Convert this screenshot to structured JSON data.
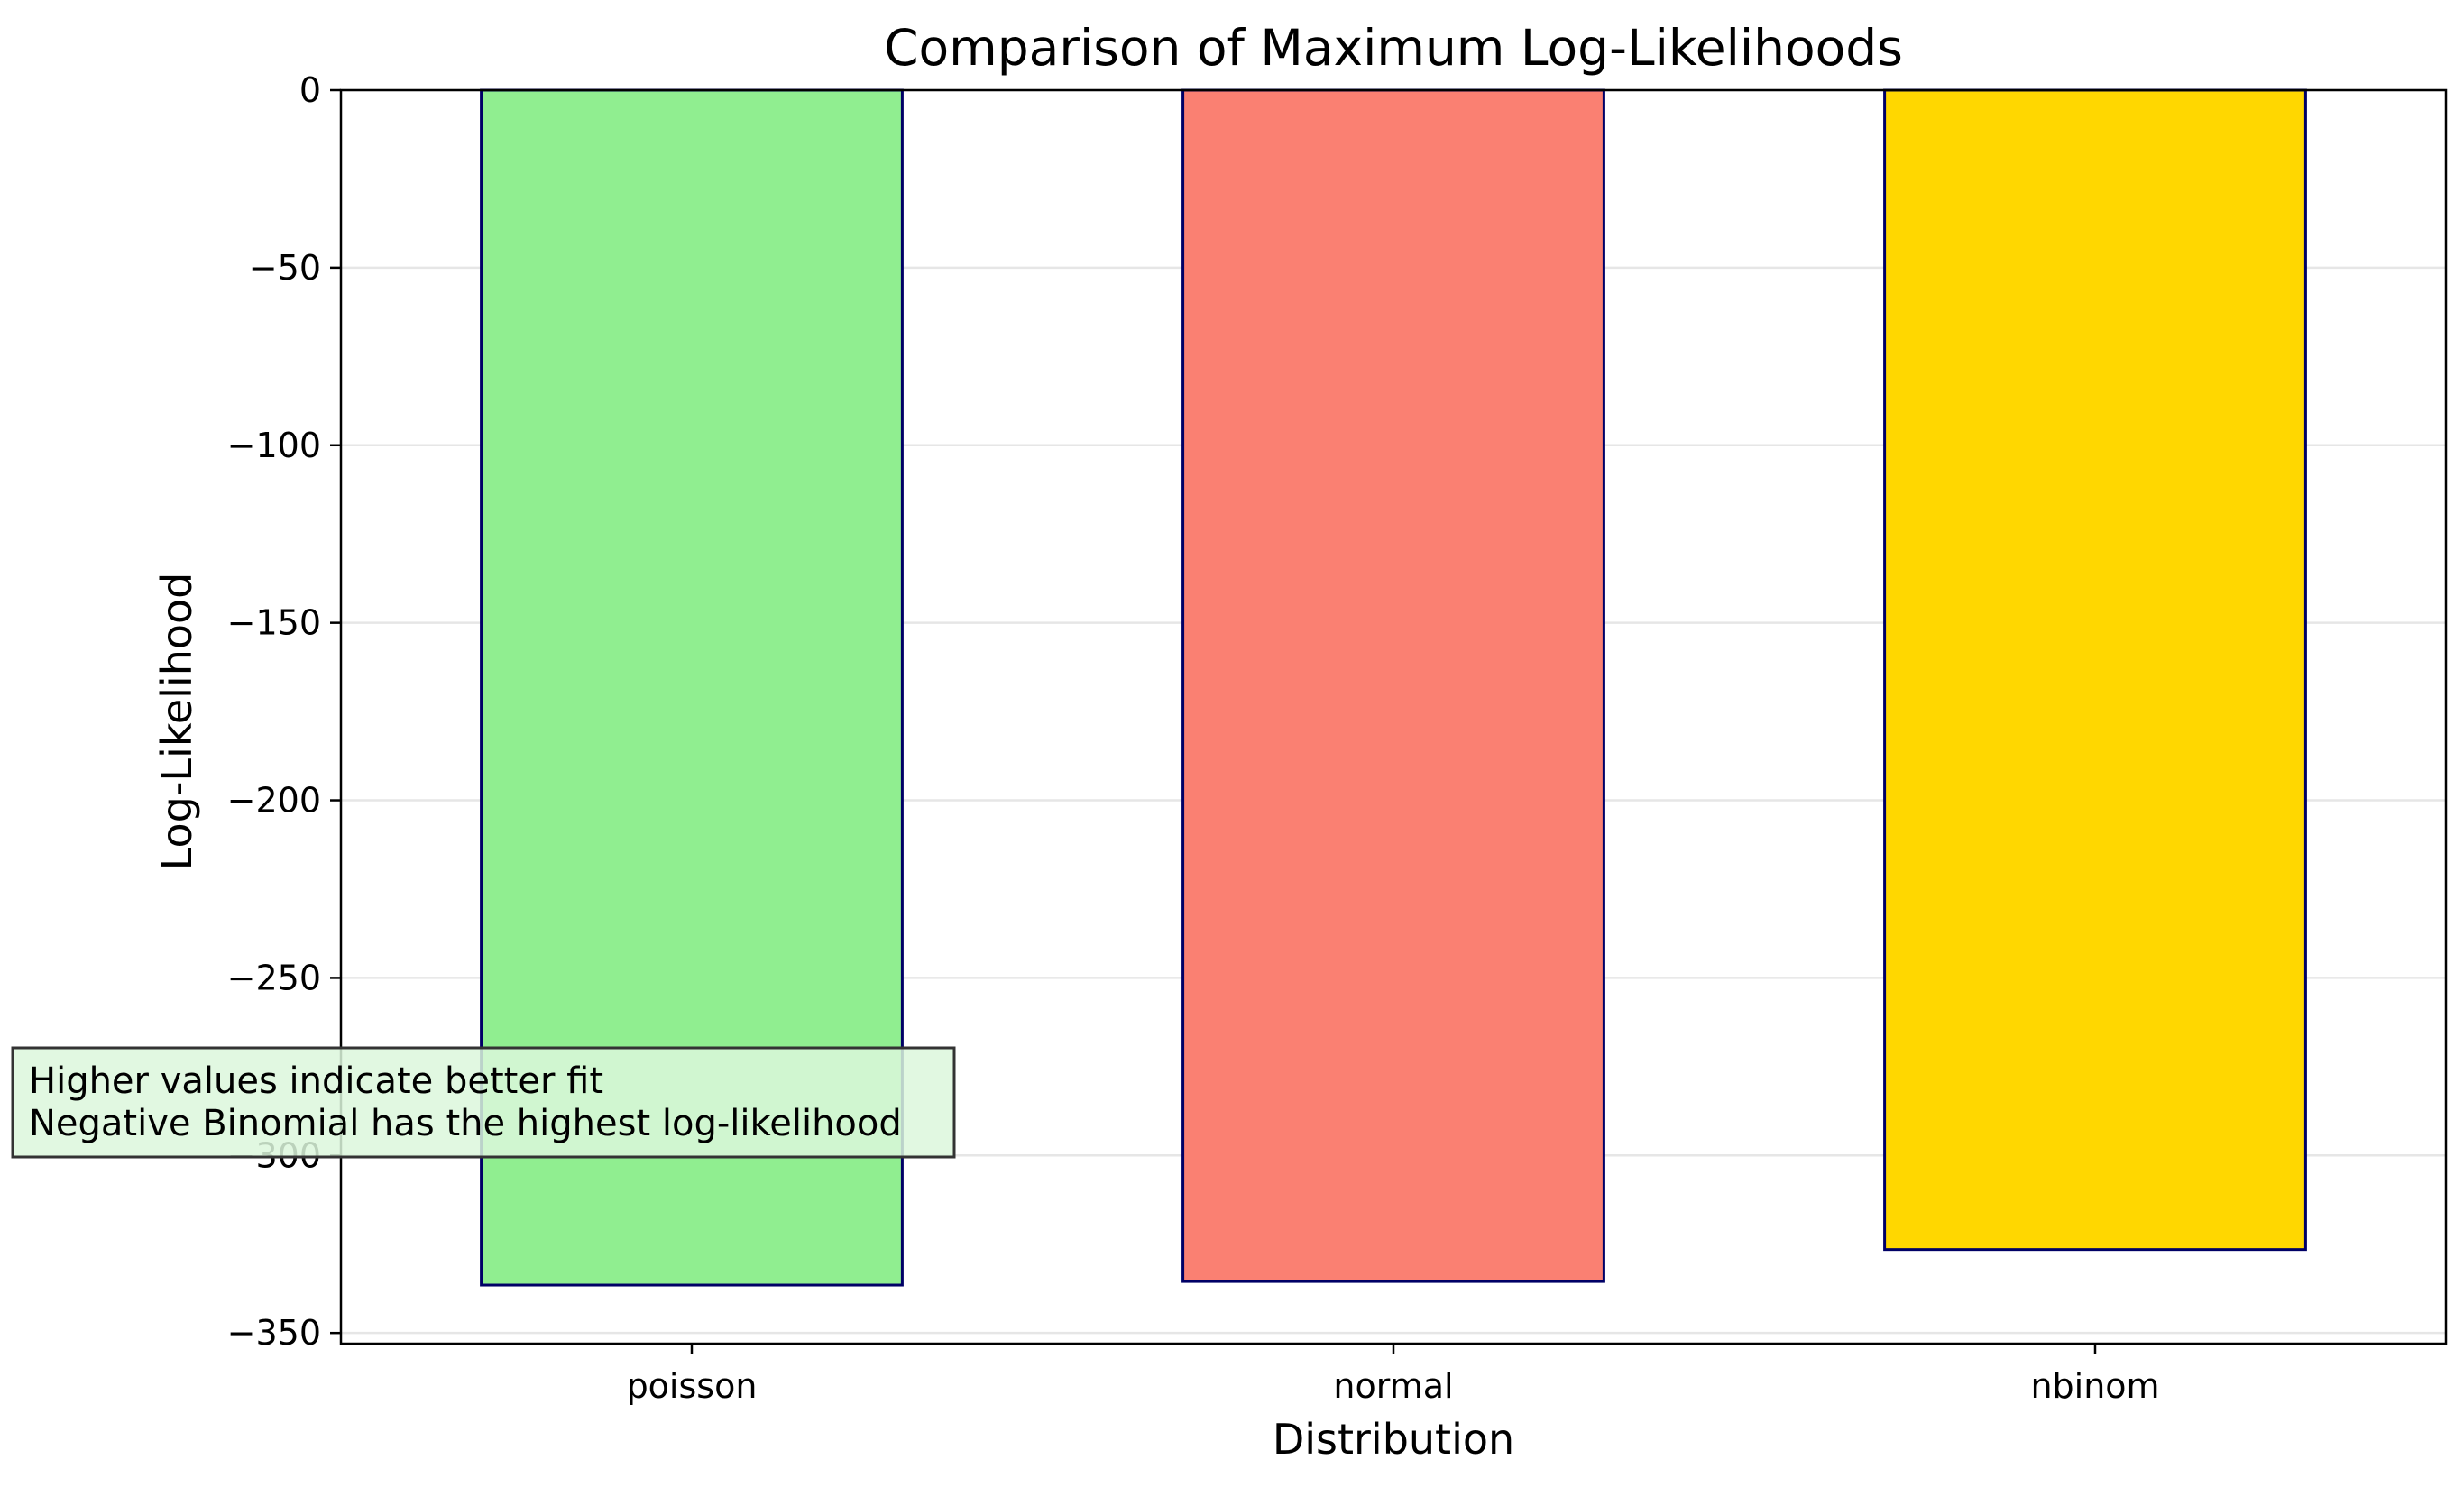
{
  "chart_data": {
    "type": "bar",
    "title": "Comparison of Maximum Log-Likelihoods",
    "xlabel": "Distribution",
    "ylabel": "Log-Likelihood",
    "categories": [
      "poisson",
      "normal",
      "nbinom"
    ],
    "values": [
      -336.5,
      -335.5,
      -326.5
    ],
    "colors": [
      "#90ee90",
      "#fa8072",
      "#ffd700"
    ],
    "edge_color": "#000066",
    "ylim": [
      -353,
      0
    ],
    "yticks": [
      0,
      -50,
      -100,
      -150,
      -200,
      -250,
      -300,
      -350
    ],
    "ytick_labels": [
      "0",
      "−50",
      "−100",
      "−150",
      "−200",
      "−250",
      "−300",
      "−350"
    ],
    "grid": "y",
    "annotation": {
      "lines": [
        "Higher values indicate better fit",
        "Negative Binomial has the highest log-likelihood"
      ],
      "fill": "#dcf7dc",
      "border": "#333333"
    }
  }
}
